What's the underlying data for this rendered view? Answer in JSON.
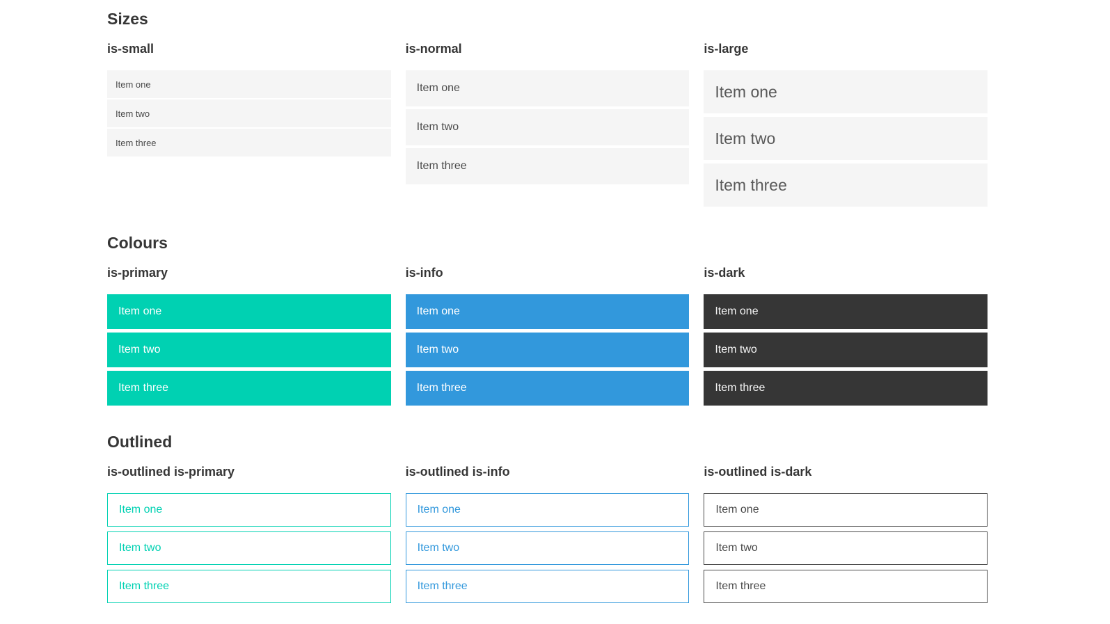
{
  "colors": {
    "primary": "#00d1b2",
    "info": "#3298dc",
    "dark": "#363636",
    "item_background": "#f5f5f5",
    "item_text": "#4a4a4a",
    "heading_text": "#363636",
    "page_background": "#ffffff"
  },
  "sections": [
    {
      "title": "Sizes",
      "columns": [
        {
          "label": "is-small",
          "items": [
            "Item one",
            "Item two",
            "Item three"
          ]
        },
        {
          "label": "is-normal",
          "items": [
            "Item one",
            "Item two",
            "Item three"
          ]
        },
        {
          "label": "is-large",
          "items": [
            "Item one",
            "Item two",
            "Item three"
          ]
        }
      ]
    },
    {
      "title": "Colours",
      "columns": [
        {
          "label": "is-primary",
          "items": [
            "Item one",
            "Item two",
            "Item three"
          ]
        },
        {
          "label": "is-info",
          "items": [
            "Item one",
            "Item two",
            "Item three"
          ]
        },
        {
          "label": "is-dark",
          "items": [
            "Item one",
            "Item two",
            "Item three"
          ]
        }
      ]
    },
    {
      "title": "Outlined",
      "columns": [
        {
          "label": "is-outlined is-primary",
          "items": [
            "Item one",
            "Item two",
            "Item three"
          ]
        },
        {
          "label": "is-outlined is-info",
          "items": [
            "Item one",
            "Item two",
            "Item three"
          ]
        },
        {
          "label": "is-outlined is-dark",
          "items": [
            "Item one",
            "Item two",
            "Item three"
          ]
        }
      ]
    }
  ]
}
